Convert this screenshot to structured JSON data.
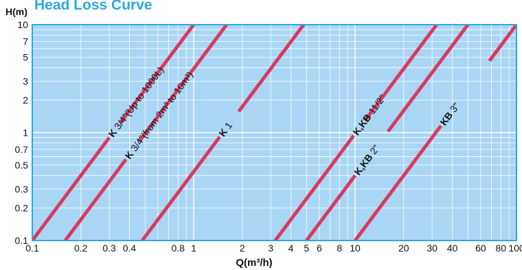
{
  "chart_data": {
    "type": "line",
    "title": "Head Loss Curve",
    "ylabel": "H(m)",
    "xlabel": "Q(m³/h)",
    "xscale": "log",
    "yscale": "log",
    "xlim": [
      0.1,
      100
    ],
    "ylim": [
      0.1,
      10
    ],
    "grid": true,
    "background_color": "#a9d6f5",
    "line_color": "#d83a5e",
    "x_ticks": [
      {
        "v": 0.1,
        "label": "0.1"
      },
      {
        "v": 0.2,
        "label": "0.2"
      },
      {
        "v": 0.3,
        "label": "0.3"
      },
      {
        "v": 0.4,
        "label": "0.4"
      },
      {
        "v": 0.8,
        "label": "0.8"
      },
      {
        "v": 1,
        "label": "1"
      },
      {
        "v": 2,
        "label": "2"
      },
      {
        "v": 3,
        "label": "3"
      },
      {
        "v": 4,
        "label": "4"
      },
      {
        "v": 5,
        "label": "5"
      },
      {
        "v": 6,
        "label": "6"
      },
      {
        "v": 8,
        "label": "8"
      },
      {
        "v": 10,
        "label": "10"
      },
      {
        "v": 20,
        "label": "20"
      },
      {
        "v": 30,
        "label": "30"
      },
      {
        "v": 40,
        "label": "40"
      },
      {
        "v": 60,
        "label": "60"
      },
      {
        "v": 80,
        "label": "80"
      },
      {
        "v": 100,
        "label": "100"
      }
    ],
    "y_ticks": [
      {
        "v": 0.1,
        "label": "0.1"
      },
      {
        "v": 0.2,
        "label": "0.2"
      },
      {
        "v": 0.3,
        "label": "0.3"
      },
      {
        "v": 0.5,
        "label": "0.5"
      },
      {
        "v": 0.7,
        "label": "0.7"
      },
      {
        "v": 1,
        "label": "1"
      },
      {
        "v": 2,
        "label": "2"
      },
      {
        "v": 3,
        "label": "3"
      },
      {
        "v": 5,
        "label": "5"
      },
      {
        "v": 7,
        "label": "7"
      },
      {
        "v": 10,
        "label": "10"
      }
    ],
    "series": [
      {
        "name": "K 3/4\"(Up to 1000L)",
        "bold": "K",
        "rest": " 3/4\"(Up to 1000L)",
        "sup": "",
        "points": [
          [
            0.1,
            0.1
          ],
          [
            1,
            10
          ]
        ],
        "gap": [
          0.3,
          0.35
        ]
      },
      {
        "name": "K 3/4\"(from 2m³ to 10m³)",
        "bold": "K",
        "rest": " 3/4\"(from 2m³ to 10m³)",
        "sup": "",
        "points": [
          [
            0.16,
            0.1
          ],
          [
            1.6,
            10
          ]
        ],
        "gap": [
          0.38,
          0.46
        ]
      },
      {
        "name": "K 1",
        "bold": "K",
        "rest": "  1",
        "sup": "",
        "points": [
          [
            0.48,
            0.1
          ],
          [
            4.8,
            10
          ]
        ],
        "gap": [
          1.45,
          1.9
        ]
      },
      {
        "name": "K,KB 11/2\"",
        "bold": "K,KB",
        "rest": "  11/2\"",
        "sup": "",
        "points": [
          [
            3.2,
            0.1
          ],
          [
            32,
            10
          ]
        ],
        "gap": [
          9.8,
          11.5
        ]
      },
      {
        "name": "K,KB 2\"",
        "bold": "K,KB",
        "rest": "  2\"",
        "sup": "",
        "points": [
          [
            5,
            0.1
          ],
          [
            50,
            10
          ]
        ],
        "gap": [
          10,
          16
        ]
      },
      {
        "name": "KB 3\"",
        "bold": "KB",
        "rest": "  3\"",
        "sup": "",
        "points": [
          [
            10,
            0.1
          ],
          [
            100,
            10
          ]
        ],
        "gap": [
          34,
          68
        ]
      }
    ]
  }
}
